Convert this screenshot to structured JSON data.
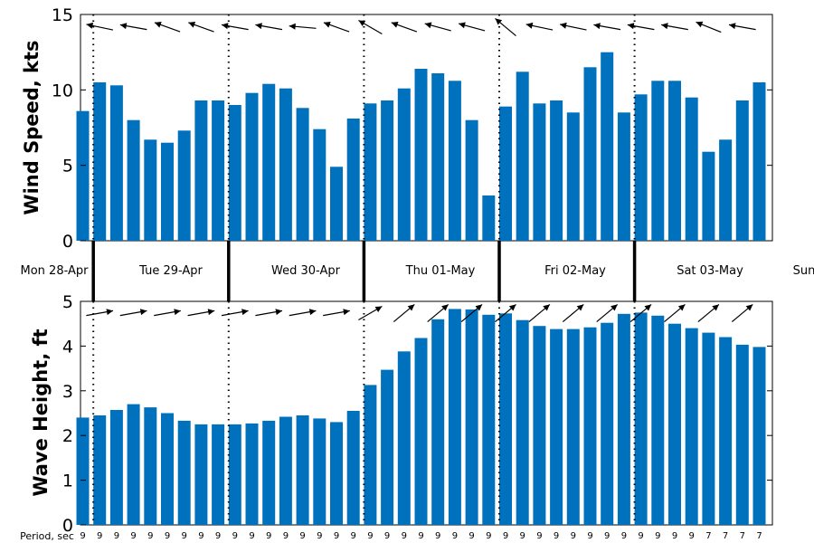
{
  "chart_data": [
    {
      "type": "bar",
      "panel": "wind",
      "ylabel": "Wind Speed, kts",
      "ylim": [
        0,
        15
      ],
      "yticks": [
        "0",
        "5",
        "10",
        "15"
      ],
      "bar_color": "#0072BD",
      "values": [
        8.6,
        10.5,
        10.3,
        8.0,
        6.7,
        6.5,
        7.3,
        9.3,
        9.3,
        9.0,
        9.8,
        10.4,
        10.1,
        8.8,
        7.4,
        4.9,
        8.1,
        9.1,
        9.3,
        10.1,
        11.4,
        11.1,
        10.6,
        8.0,
        3.0,
        8.9,
        11.2,
        9.1,
        9.3,
        8.5,
        11.5,
        12.5,
        8.5,
        9.7,
        10.6,
        10.6,
        9.5,
        5.9,
        6.7,
        9.3,
        10.5
      ],
      "direction_deg": [
        160,
        168,
        168,
        170,
        165,
        160,
        165,
        160,
        158,
        170,
        172,
        170,
        168,
        175,
        165,
        160,
        168,
        150,
        155,
        160,
        165,
        165,
        160,
        165,
        165,
        140,
        160,
        168,
        170,
        168,
        172,
        170,
        168,
        170,
        168,
        170,
        160,
        158,
        170,
        170,
        170
      ]
    },
    {
      "type": "bar",
      "panel": "wave",
      "ylabel": "Wave Height, ft",
      "ylim": [
        0,
        5
      ],
      "yticks": [
        "0",
        "1",
        "2",
        "3",
        "4",
        "5"
      ],
      "bar_color": "#0072BD",
      "values": [
        2.4,
        2.45,
        2.57,
        2.7,
        2.63,
        2.5,
        2.33,
        2.25,
        2.25,
        2.25,
        2.27,
        2.33,
        2.42,
        2.45,
        2.38,
        2.3,
        2.55,
        3.13,
        3.47,
        3.88,
        4.18,
        4.6,
        4.83,
        4.82,
        4.7,
        4.73,
        4.58,
        4.45,
        4.38,
        4.38,
        4.42,
        4.52,
        4.72,
        4.75,
        4.68,
        4.5,
        4.4,
        4.3,
        4.2,
        4.03,
        3.98
      ],
      "direction_deg": [
        10,
        10,
        10,
        10,
        10,
        10,
        10,
        10,
        10,
        10,
        10,
        10,
        10,
        10,
        10,
        10,
        20,
        30,
        40,
        40,
        40,
        40,
        40,
        40,
        40,
        40,
        40,
        40,
        40,
        40,
        40,
        40,
        40,
        40,
        40,
        40,
        40,
        40,
        40,
        40,
        40
      ]
    }
  ],
  "day_labels": [
    "Mon 28-Apr",
    "Tue 29-Apr",
    "Wed 30-Apr",
    "Thu 01-May",
    "Fri 02-May",
    "Sat 03-May",
    "Sun"
  ],
  "period_label": "Period, sec",
  "periods": [
    "9",
    "9",
    "9",
    "9",
    "9",
    "9",
    "9",
    "9",
    "9",
    "9",
    "9",
    "9",
    "9",
    "9",
    "9",
    "9",
    "9",
    "9",
    "9",
    "9",
    "9",
    "9",
    "9",
    "9",
    "9",
    "9",
    "9",
    "9",
    "9",
    "9",
    "9",
    "9",
    "9",
    "9",
    "9",
    "9",
    "9",
    "7",
    "7",
    "7",
    "7"
  ]
}
